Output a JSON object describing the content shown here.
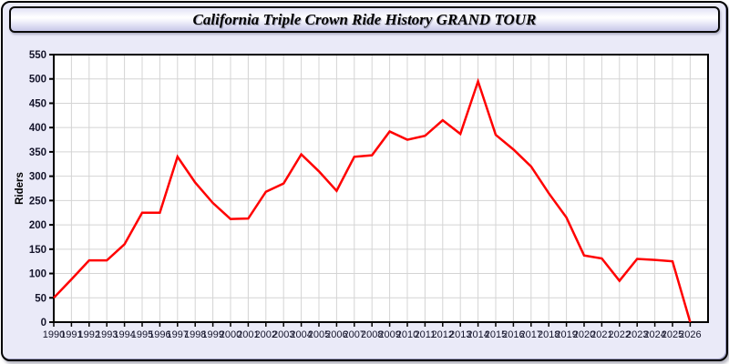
{
  "window": {
    "title": "California Triple Crown Ride History GRAND TOUR",
    "background_color": "#eaeaf8",
    "border_color": "#000000"
  },
  "chart_data": {
    "type": "line",
    "title": "California Triple Crown Ride History GRAND TOUR",
    "xlabel": "",
    "ylabel": "Riders",
    "ylim": [
      0,
      550
    ],
    "ytick_step": 50,
    "grid": true,
    "legend_position": "none",
    "plot_bg": "#ffffff",
    "grid_color": "#d4d4d4",
    "axis_color": "#000000",
    "tick_label_color": "#14142a",
    "line_color": "#ff0000",
    "x": [
      "1990",
      "1991",
      "1992",
      "1993",
      "1994",
      "1995",
      "1996",
      "1997",
      "1998",
      "1999",
      "2000",
      "2001",
      "2002",
      "2003",
      "2004",
      "2005",
      "2006",
      "2007",
      "2008",
      "2009",
      "2010",
      "2011",
      "2012",
      "2013",
      "2014",
      "2015",
      "2016",
      "2017",
      "2018",
      "2019",
      "2020",
      "2021",
      "2022",
      "2023",
      "2024",
      "2025",
      "2026"
    ],
    "series": [
      {
        "name": "Riders",
        "values": [
          50,
          88,
          127,
          127,
          160,
          225,
          225,
          340,
          287,
          245,
          212,
          213,
          268,
          285,
          345,
          310,
          270,
          340,
          343,
          392,
          375,
          383,
          415,
          387,
          495,
          385,
          355,
          320,
          265,
          215,
          137,
          131,
          85,
          130,
          128,
          125,
          0
        ]
      }
    ]
  }
}
